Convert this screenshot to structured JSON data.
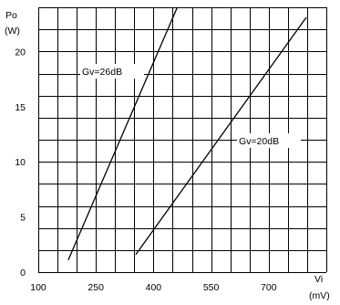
{
  "chart_data": {
    "type": "line",
    "title": "",
    "ylabel": "Po",
    "ylabel_unit": "(W)",
    "xlabel": "Vi",
    "xlabel_unit": "(mV)",
    "xlim": [
      100,
      850
    ],
    "ylim": [
      0,
      24
    ],
    "x_ticks": [
      100,
      250,
      400,
      550,
      700
    ],
    "y_ticks": [
      0,
      5,
      10,
      15,
      20
    ],
    "grid": true,
    "series": [
      {
        "name": "Gv=26dB",
        "x": [
          178,
          462
        ],
        "y": [
          1.1,
          24.0
        ]
      },
      {
        "name": "Gv=20dB",
        "x": [
          354,
          798
        ],
        "y": [
          1.6,
          23.1
        ]
      }
    ]
  }
}
